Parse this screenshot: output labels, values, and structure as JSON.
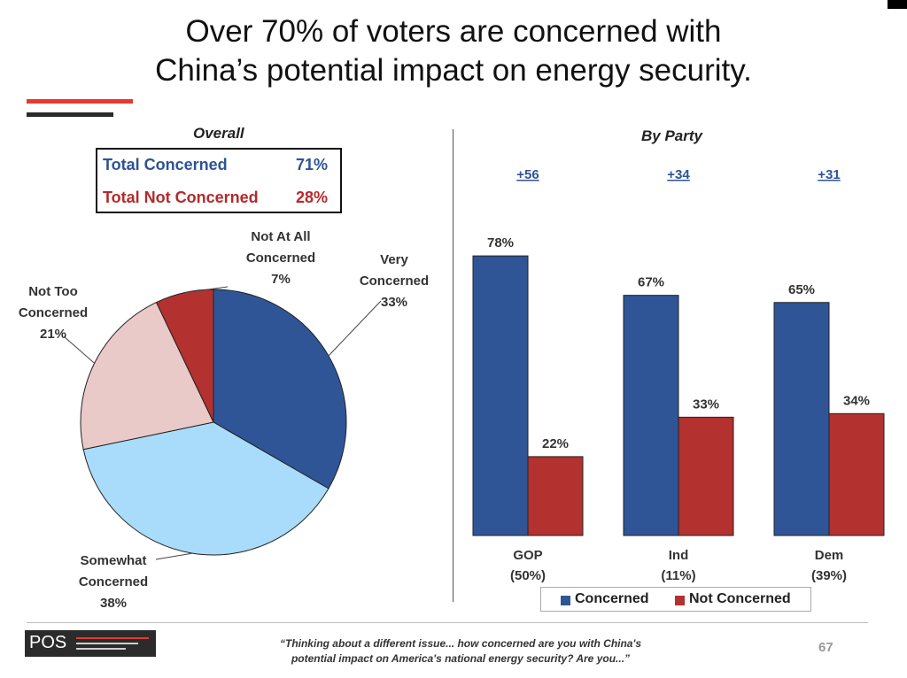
{
  "slide": {
    "title_line1": "Over 70% of voters are concerned with",
    "title_line2": "China’s potential impact on energy security.",
    "left_header": "Overall",
    "right_header": "By Party",
    "summary": {
      "concerned_label": "Total Concerned",
      "concerned_value": "71%",
      "not_concerned_label": "Total Not Concerned",
      "not_concerned_value": "28%"
    },
    "footnote_line1": "“Thinking about a different issue... how concerned are you with China's",
    "footnote_line2": "potential impact on America's national energy security? Are you...”",
    "page_number": "67",
    "logo_text": "POS"
  },
  "colors": {
    "concerned": "#2f5597",
    "not_concerned": "#b3312f",
    "very": "#2f5597",
    "somewhat": "#a9dcfb",
    "not_too": "#eac9c9",
    "not_at_all": "#b3312f",
    "accent_red": "#e53a2f"
  },
  "chart_data": [
    {
      "type": "pie",
      "title": "Overall",
      "slices": [
        {
          "label_lines": [
            "Very",
            "Concerned",
            "33%"
          ],
          "value": 33,
          "color": "#2f5597"
        },
        {
          "label_lines": [
            "Somewhat",
            "Concerned",
            "38%"
          ],
          "value": 38,
          "color": "#a9dcfb"
        },
        {
          "label_lines": [
            "Not Too",
            "Concerned",
            "21%"
          ],
          "value": 21,
          "color": "#eac9c9"
        },
        {
          "label_lines": [
            "Not At All",
            "Concerned",
            "7%"
          ],
          "value": 7,
          "color": "#b3312f"
        }
      ]
    },
    {
      "type": "bar",
      "title": "By Party",
      "categories": [
        {
          "name": "GOP",
          "share": "(50%)",
          "margin": "+56"
        },
        {
          "name": "Ind",
          "share": "(11%)",
          "margin": "+34"
        },
        {
          "name": "Dem",
          "share": "(39%)",
          "margin": "+31"
        }
      ],
      "series": [
        {
          "name": "Concerned",
          "values": [
            78,
            67,
            65
          ],
          "labels": [
            "78%",
            "67%",
            "65%"
          ],
          "color": "#2f5597"
        },
        {
          "name": "Not Concerned",
          "values": [
            22,
            33,
            34
          ],
          "labels": [
            "22%",
            "33%",
            "34%"
          ],
          "color": "#b3312f"
        }
      ],
      "ylim": [
        0,
        100
      ],
      "legend": "bottom"
    }
  ]
}
